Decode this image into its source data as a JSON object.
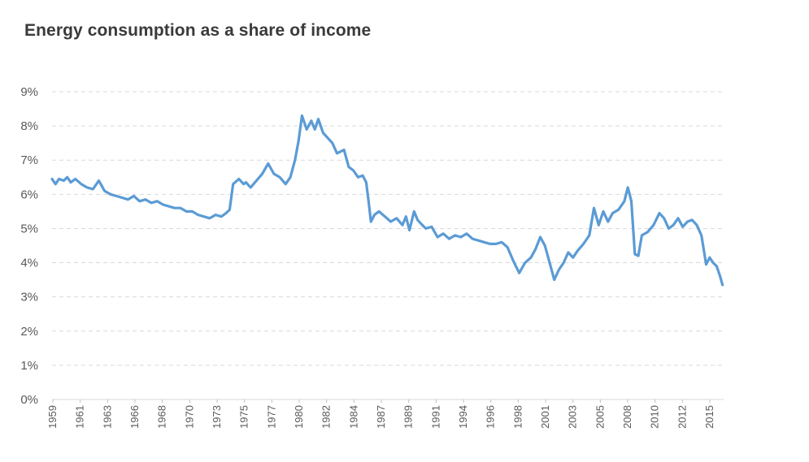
{
  "chart_data": {
    "type": "line",
    "title": "Energy consumption as a share of income",
    "xlabel": "",
    "ylabel": "",
    "ylim": [
      0,
      9
    ],
    "y_ticks": [
      "0%",
      "1%",
      "2%",
      "3%",
      "4%",
      "5%",
      "6%",
      "7%",
      "8%",
      "9%"
    ],
    "x_ticks": [
      "1959",
      "1961",
      "1963",
      "1966",
      "1968",
      "1970",
      "1973",
      "1975",
      "1977",
      "1980",
      "1982",
      "1984",
      "1987",
      "1989",
      "1991",
      "1994",
      "1996",
      "1998",
      "2001",
      "2003",
      "2005",
      "2008",
      "2010",
      "2012",
      "2015"
    ],
    "xlim": [
      1959.0,
      2016.5
    ],
    "grid": true,
    "legend": "none",
    "line_color": "#5b9bd5",
    "series": [
      {
        "x": [
          1959.0,
          1959.3,
          1959.6,
          1960.0,
          1960.3,
          1960.6,
          1961.0,
          1961.5,
          1962.0,
          1962.5,
          1963.0,
          1963.5,
          1964.0,
          1964.5,
          1965.0,
          1965.5,
          1966.0,
          1966.5,
          1967.0,
          1967.5,
          1968.0,
          1968.5,
          1969.0,
          1969.5,
          1970.0,
          1970.5,
          1971.0,
          1971.5,
          1972.0,
          1972.5,
          1973.0,
          1973.5,
          1973.9,
          1974.2,
          1974.5,
          1975.0,
          1975.4,
          1975.6,
          1976.0,
          1976.5,
          1977.0,
          1977.5,
          1978.0,
          1978.5,
          1979.0,
          1979.4,
          1979.8,
          1980.1,
          1980.4,
          1980.8,
          1981.2,
          1981.5,
          1981.8,
          1982.2,
          1982.6,
          1983.0,
          1983.4,
          1983.7,
          1984.0,
          1984.4,
          1984.8,
          1985.2,
          1985.6,
          1985.9,
          1986.1,
          1986.3,
          1986.6,
          1987.0,
          1987.5,
          1988.0,
          1988.5,
          1989.0,
          1989.3,
          1989.6,
          1990.0,
          1990.3,
          1990.7,
          1991.0,
          1991.5,
          1992.0,
          1992.5,
          1993.0,
          1993.5,
          1994.0,
          1994.5,
          1995.0,
          1995.5,
          1996.0,
          1996.5,
          1997.0,
          1997.5,
          1998.0,
          1998.5,
          1999.0,
          1999.5,
          2000.0,
          2000.4,
          2000.8,
          2001.2,
          2001.6,
          2002.0,
          2002.4,
          2002.8,
          2003.2,
          2003.6,
          2004.0,
          2004.5,
          2005.0,
          2005.4,
          2005.8,
          2006.2,
          2006.6,
          2007.0,
          2007.5,
          2008.0,
          2008.3,
          2008.6,
          2008.9,
          2009.2,
          2009.5,
          2010.0,
          2010.5,
          2011.0,
          2011.4,
          2011.8,
          2012.2,
          2012.6,
          2013.0,
          2013.4,
          2013.8,
          2014.2,
          2014.6,
          2015.0,
          2015.3,
          2015.6,
          2015.9,
          2016.2,
          2016.4
        ],
        "values": [
          6.45,
          6.3,
          6.45,
          6.4,
          6.5,
          6.35,
          6.45,
          6.3,
          6.2,
          6.15,
          6.4,
          6.1,
          6.0,
          5.95,
          5.9,
          5.85,
          5.95,
          5.8,
          5.85,
          5.75,
          5.8,
          5.7,
          5.65,
          5.6,
          5.6,
          5.5,
          5.5,
          5.4,
          5.35,
          5.3,
          5.4,
          5.35,
          5.45,
          5.55,
          6.3,
          6.45,
          6.3,
          6.35,
          6.2,
          6.4,
          6.6,
          6.9,
          6.6,
          6.5,
          6.3,
          6.5,
          7.0,
          7.55,
          8.3,
          7.9,
          8.15,
          7.9,
          8.2,
          7.8,
          7.65,
          7.5,
          7.2,
          7.25,
          7.3,
          6.8,
          6.7,
          6.5,
          6.55,
          6.35,
          5.8,
          5.2,
          5.4,
          5.5,
          5.35,
          5.2,
          5.3,
          5.1,
          5.35,
          4.95,
          5.5,
          5.25,
          5.1,
          5.0,
          5.05,
          4.75,
          4.85,
          4.7,
          4.8,
          4.75,
          4.85,
          4.7,
          4.65,
          4.6,
          4.55,
          4.55,
          4.6,
          4.45,
          4.05,
          3.7,
          4.0,
          4.15,
          4.4,
          4.75,
          4.5,
          4.0,
          3.5,
          3.8,
          4.0,
          4.3,
          4.15,
          4.35,
          4.55,
          4.8,
          5.6,
          5.1,
          5.5,
          5.2,
          5.45,
          5.55,
          5.8,
          6.2,
          5.8,
          4.25,
          4.2,
          4.8,
          4.9,
          5.1,
          5.45,
          5.3,
          5.0,
          5.1,
          5.3,
          5.05,
          5.2,
          5.25,
          5.1,
          4.8,
          3.95,
          4.15,
          4.0,
          3.9,
          3.6,
          3.35
        ]
      }
    ]
  }
}
